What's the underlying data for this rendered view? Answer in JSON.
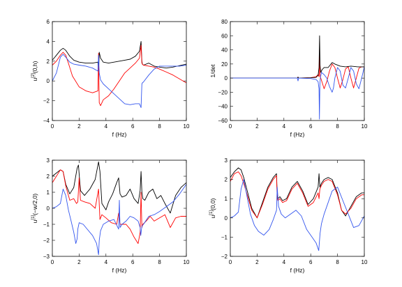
{
  "chart_data": [
    {
      "type": "line",
      "xlabel": "f (Hz)",
      "ylabel": "u^[2](0,h)",
      "ylabel_parts": {
        "base": "u",
        "sup": "[2]",
        "rest": "(0,h)"
      },
      "xlim": [
        0,
        10
      ],
      "ylim": [
        -4,
        6
      ],
      "xticks": [
        0,
        2,
        4,
        6,
        8,
        10
      ],
      "yticks": [
        -4,
        -2,
        0,
        2,
        4,
        6
      ],
      "grid": false,
      "series": [
        {
          "color": "#000000",
          "x": [
            0,
            0.3,
            0.6,
            0.8,
            1.0,
            1.3,
            1.6,
            2.0,
            2.5,
            3.0,
            3.4,
            3.45,
            3.5,
            3.6,
            3.8,
            4.2,
            4.6,
            5.0,
            5.4,
            5.8,
            6.2,
            6.5,
            6.62,
            6.68,
            6.72,
            6.8,
            7.2,
            7.6,
            8.0,
            8.5,
            9.0,
            9.5,
            10.0
          ],
          "y": [
            2.1,
            2.6,
            3.1,
            3.3,
            3.1,
            2.5,
            2.1,
            1.9,
            1.8,
            1.8,
            1.9,
            0.7,
            2.9,
            2.3,
            1.9,
            1.8,
            1.9,
            2.0,
            2.1,
            2.2,
            2.5,
            3.0,
            4.0,
            2.0,
            1.7,
            1.6,
            1.8,
            1.5,
            1.4,
            1.3,
            1.4,
            1.55,
            1.7
          ]
        },
        {
          "color": "#ff0000",
          "x": [
            0,
            0.3,
            0.6,
            0.8,
            1.0,
            1.2,
            1.5,
            2.0,
            2.5,
            3.0,
            3.4,
            3.45,
            3.5,
            3.6,
            3.8,
            4.2,
            4.6,
            5.0,
            5.4,
            5.8,
            6.2,
            6.5,
            6.62,
            6.68,
            6.72,
            6.8,
            7.2,
            7.6,
            8.0,
            8.5,
            9.0,
            9.5,
            10.0
          ],
          "y": [
            1.6,
            2.0,
            2.6,
            2.9,
            2.6,
            1.8,
            0.5,
            -0.6,
            -1.0,
            -1.2,
            -1.0,
            2.8,
            -2.2,
            -2.5,
            -1.9,
            -1.5,
            -0.8,
            0.0,
            0.8,
            1.3,
            1.8,
            2.3,
            3.6,
            1.8,
            1.7,
            1.6,
            1.5,
            1.4,
            1.2,
            0.9,
            0.6,
            0.2,
            -0.2
          ]
        },
        {
          "color": "#3355ee",
          "x": [
            0,
            0.3,
            0.6,
            0.8,
            1.0,
            1.3,
            1.6,
            2.0,
            2.5,
            3.0,
            3.4,
            3.45,
            3.5,
            3.6,
            3.8,
            4.2,
            4.6,
            5.0,
            5.4,
            5.8,
            6.2,
            6.5,
            6.62,
            6.68,
            6.72,
            6.8,
            7.2,
            7.6,
            8.0,
            8.5,
            9.0,
            9.5,
            10.0
          ],
          "y": [
            0.0,
            0.8,
            2.4,
            2.7,
            2.4,
            1.9,
            1.7,
            1.6,
            1.5,
            1.3,
            1.0,
            2.6,
            0.8,
            0.1,
            -0.3,
            -0.8,
            -1.3,
            -1.8,
            -2.3,
            -2.4,
            -2.3,
            -2.3,
            -2.7,
            -0.3,
            -0.2,
            -0.1,
            0.6,
            1.2,
            1.5,
            1.5,
            1.5,
            1.5,
            1.6
          ]
        }
      ]
    },
    {
      "type": "line",
      "xlabel": "f (Hz)",
      "ylabel": "1/det",
      "ylabel_parts": {
        "base": "1/det",
        "sup": "",
        "rest": ""
      },
      "xlim": [
        0,
        10
      ],
      "ylim": [
        -60,
        80
      ],
      "xticks": [
        0,
        2,
        4,
        6,
        8,
        10
      ],
      "yticks": [
        -60,
        -40,
        -20,
        0,
        20,
        40,
        60,
        80
      ],
      "grid": false,
      "series": [
        {
          "color": "#ff0000",
          "x": [
            0,
            4.8,
            5.0,
            5.05,
            5.1,
            5.5,
            6.0,
            6.4,
            6.55,
            6.62,
            6.65,
            6.68,
            6.72,
            6.8,
            7.0,
            7.2,
            7.4,
            7.6,
            7.8,
            8.0,
            8.2,
            8.4,
            8.6,
            8.8,
            9.0,
            9.2,
            9.4,
            9.6,
            9.8,
            10.0
          ],
          "y": [
            0,
            0,
            0,
            1.5,
            0,
            0.3,
            0.5,
            2,
            5,
            2,
            40,
            8,
            2,
            -3,
            -15,
            -5,
            10,
            20,
            15,
            0,
            -14,
            -2,
            13,
            16,
            0,
            -14,
            0,
            14,
            16,
            16
          ]
        },
        {
          "color": "#000000",
          "x": [
            0,
            4.8,
            5.0,
            5.05,
            5.1,
            5.5,
            6.0,
            6.4,
            6.55,
            6.62,
            6.66,
            6.7,
            6.75,
            6.85,
            7.0,
            7.3,
            7.6,
            7.8,
            8.2,
            8.6,
            9.0,
            9.5,
            10.0
          ],
          "y": [
            0,
            0,
            0,
            1.5,
            0,
            0.2,
            0.4,
            1,
            4,
            15,
            60,
            18,
            8,
            12,
            15,
            15,
            22,
            20,
            17,
            16,
            17,
            16,
            16
          ]
        },
        {
          "color": "#3355ee",
          "x": [
            0,
            4.8,
            5.0,
            5.05,
            5.1,
            5.5,
            6.0,
            6.4,
            6.55,
            6.62,
            6.65,
            6.68,
            6.72,
            6.8,
            7.0,
            7.2,
            7.4,
            7.6,
            7.7,
            7.8,
            8.0,
            8.2,
            8.4,
            8.6,
            8.8,
            9.0,
            9.2,
            9.4,
            9.6,
            9.8,
            10.0
          ],
          "y": [
            0,
            0,
            0,
            -4,
            0,
            -0.3,
            -0.5,
            -2,
            -5,
            -15,
            -58,
            -10,
            0,
            8,
            5,
            0,
            -12,
            -20,
            -14,
            0,
            15,
            10,
            -10,
            -14,
            0,
            15,
            10,
            -8,
            -15,
            0,
            16
          ]
        }
      ]
    },
    {
      "type": "line",
      "xlabel": "f (Hz)",
      "ylabel": "u^[1](-w/2,0)",
      "ylabel_parts": {
        "base": "u",
        "sup": "[1]",
        "rest": "(−w/2,0)"
      },
      "xlim": [
        0,
        10
      ],
      "ylim": [
        -3,
        3
      ],
      "xticks": [
        0,
        2,
        4,
        6,
        8,
        10
      ],
      "yticks": [
        -3,
        -2,
        -1,
        0,
        1,
        2,
        3
      ],
      "grid": false,
      "series": [
        {
          "color": "#000000",
          "x": [
            0,
            0.3,
            0.6,
            0.8,
            1.0,
            1.3,
            1.6,
            1.85,
            1.95,
            2.1,
            2.4,
            2.8,
            3.2,
            3.45,
            3.55,
            3.7,
            4.0,
            4.2,
            4.5,
            4.8,
            4.95,
            5.05,
            5.2,
            5.5,
            5.8,
            6.1,
            6.4,
            6.55,
            6.62,
            6.68,
            6.75,
            6.9,
            7.2,
            7.5,
            7.8,
            8.1,
            8.4,
            8.8,
            9.2,
            9.6,
            10.0
          ],
          "y": [
            2.0,
            2.2,
            2.4,
            2.3,
            1.5,
            0.9,
            1.3,
            2.5,
            2.7,
            1.1,
            0.8,
            1.2,
            1.8,
            2.9,
            2.3,
            0.3,
            -0.1,
            0.4,
            0.9,
            1.6,
            1.9,
            0.9,
            0.7,
            0.8,
            1.2,
            0.6,
            0.3,
            1.1,
            2.3,
            1.0,
            0.6,
            0.5,
            1.0,
            1.2,
            0.6,
            0.8,
            0.3,
            -0.3,
            0.8,
            1.3,
            1.6
          ]
        },
        {
          "color": "#ff0000",
          "x": [
            0,
            0.3,
            0.6,
            0.8,
            1.0,
            1.3,
            1.6,
            1.8,
            1.9,
            2.0,
            2.1,
            2.4,
            2.8,
            3.2,
            3.45,
            3.55,
            3.7,
            4.0,
            4.4,
            4.8,
            4.95,
            5.05,
            5.2,
            5.5,
            5.8,
            6.1,
            6.4,
            6.55,
            6.62,
            6.68,
            6.75,
            7.0,
            7.3,
            7.6,
            8.0,
            8.4,
            8.8,
            9.2,
            9.6,
            10.0
          ],
          "y": [
            1.6,
            2.0,
            2.4,
            2.3,
            1.4,
            0.5,
            0.6,
            0.3,
            0.4,
            1.9,
            0.5,
            0.4,
            0.3,
            0.0,
            1.2,
            -0.7,
            -0.4,
            -0.6,
            -0.9,
            -1.0,
            -0.3,
            -1.0,
            -1.0,
            -1.0,
            -1.3,
            -1.8,
            -2.2,
            -1.5,
            1.0,
            -1.2,
            -1.0,
            -0.8,
            -0.5,
            -0.8,
            -0.6,
            -0.4,
            -1.2,
            -0.6,
            -0.5,
            -0.5
          ]
        },
        {
          "color": "#3355ee",
          "x": [
            0,
            0.3,
            0.6,
            0.8,
            1.0,
            1.2,
            1.4,
            1.6,
            1.75,
            1.85,
            1.9,
            2.0,
            2.3,
            2.6,
            3.0,
            3.3,
            3.45,
            3.5,
            3.6,
            3.8,
            4.2,
            4.6,
            4.95,
            5.0,
            5.05,
            5.2,
            5.5,
            5.8,
            6.1,
            6.4,
            6.55,
            6.6,
            6.65,
            6.7,
            6.8,
            7.2,
            7.6,
            8.0,
            8.5,
            9.0,
            9.5,
            10.0
          ],
          "y": [
            0.0,
            0.1,
            0.3,
            1.2,
            0.8,
            -0.1,
            -0.8,
            -1.5,
            -2.2,
            -1.9,
            -1.3,
            -0.9,
            -1.0,
            -1.3,
            -1.7,
            -2.2,
            -2.9,
            -2.0,
            -1.4,
            -1.0,
            -0.8,
            -0.7,
            -1.3,
            0.5,
            -1.2,
            -1.0,
            -0.8,
            -0.5,
            -0.6,
            -0.8,
            -1.2,
            -1.7,
            -1.3,
            -1.1,
            -1.0,
            -0.5,
            -0.4,
            -0.2,
            0.1,
            0.4,
            0.9,
            1.5
          ]
        }
      ]
    },
    {
      "type": "line",
      "xlabel": "f (Hz)",
      "ylabel": "u^[1](0,0)",
      "ylabel_parts": {
        "base": "u",
        "sup": "[1]",
        "rest": "(0,0)"
      },
      "xlim": [
        0,
        10
      ],
      "ylim": [
        -2,
        3
      ],
      "xticks": [
        0,
        2,
        4,
        6,
        8,
        10
      ],
      "yticks": [
        -2,
        -1,
        0,
        1,
        2,
        3
      ],
      "grid": false,
      "series": [
        {
          "color": "#000000",
          "x": [
            0,
            0.3,
            0.6,
            0.8,
            1.0,
            1.3,
            1.6,
            2.0,
            2.4,
            2.8,
            3.2,
            3.45,
            3.5,
            3.55,
            3.7,
            3.9,
            4.2,
            4.6,
            5.0,
            5.4,
            5.8,
            6.2,
            6.55,
            6.62,
            6.68,
            6.8,
            7.0,
            7.3,
            7.6,
            8.0,
            8.3,
            8.6,
            9.0,
            9.4,
            9.8,
            10.0
          ],
          "y": [
            2.1,
            2.4,
            2.6,
            2.5,
            2.1,
            1.3,
            0.5,
            0.0,
            0.8,
            1.6,
            2.1,
            2.3,
            1.2,
            1.0,
            1.1,
            0.9,
            1.0,
            1.6,
            1.9,
            1.4,
            0.7,
            1.0,
            1.6,
            2.3,
            1.6,
            1.8,
            2.0,
            2.1,
            2.0,
            1.3,
            0.4,
            0.1,
            0.6,
            1.1,
            1.3,
            1.3
          ]
        },
        {
          "color": "#ff0000",
          "x": [
            0,
            0.3,
            0.6,
            0.8,
            1.0,
            1.3,
            1.6,
            2.0,
            2.4,
            2.8,
            3.2,
            3.45,
            3.5,
            3.55,
            3.7,
            3.9,
            4.2,
            4.6,
            5.0,
            5.4,
            5.8,
            6.2,
            6.55,
            6.62,
            6.68,
            6.8,
            7.0,
            7.3,
            7.6,
            8.0,
            8.3,
            8.6,
            9.0,
            9.4,
            9.8,
            10.0
          ],
          "y": [
            1.9,
            2.3,
            2.4,
            2.2,
            1.8,
            1.1,
            0.4,
            0.0,
            0.7,
            1.5,
            2.0,
            2.2,
            1.0,
            0.9,
            1.0,
            0.8,
            0.9,
            1.5,
            1.8,
            1.3,
            0.6,
            0.8,
            1.3,
            1.0,
            1.5,
            1.7,
            1.9,
            2.0,
            1.9,
            1.2,
            0.4,
            0.2,
            0.5,
            1.0,
            1.2,
            1.2
          ]
        },
        {
          "color": "#3355ee",
          "x": [
            0,
            0.3,
            0.6,
            0.8,
            1.0,
            1.2,
            1.5,
            1.8,
            2.1,
            2.5,
            2.9,
            3.2,
            3.45,
            3.5,
            3.6,
            3.8,
            4.1,
            4.5,
            4.9,
            5.3,
            5.7,
            6.1,
            6.4,
            6.6,
            6.7,
            6.8,
            7.0,
            7.3,
            7.6,
            8.0,
            8.4,
            8.8,
            9.2,
            9.6,
            10.0
          ],
          "y": [
            0.0,
            0.1,
            0.3,
            1.5,
            2.0,
            1.3,
            0.2,
            -0.4,
            -0.7,
            -0.9,
            -0.6,
            -0.1,
            0.4,
            1.6,
            0.6,
            0.2,
            0.0,
            0.2,
            0.4,
            0.1,
            -0.6,
            -1.0,
            -1.3,
            -1.7,
            -0.8,
            -0.3,
            0.2,
            0.8,
            1.4,
            1.6,
            0.9,
            0.2,
            -0.5,
            -0.4,
            0.1
          ]
        }
      ]
    }
  ]
}
